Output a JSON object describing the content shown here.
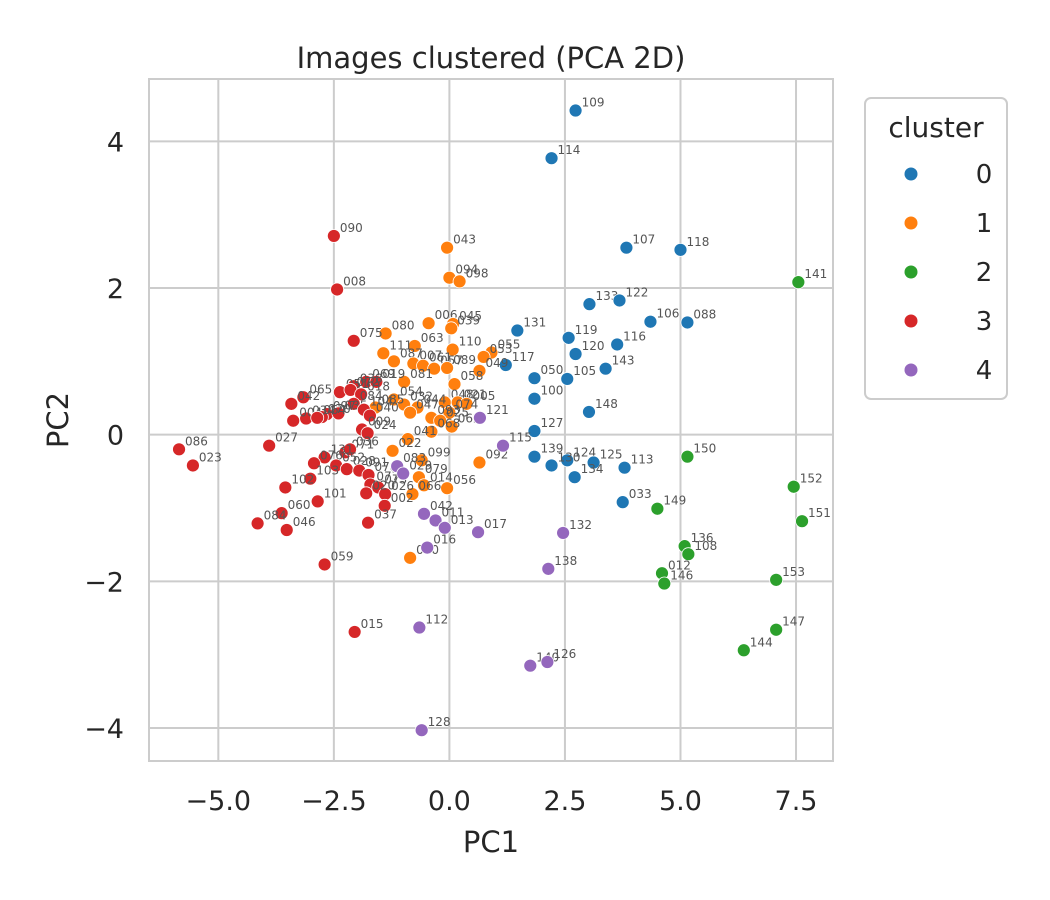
{
  "chart_data": {
    "type": "scatter",
    "title": "Images clustered (PCA 2D)",
    "xlabel": "PC1",
    "ylabel": "PC2",
    "xlim": [
      -6.5,
      8.3
    ],
    "ylim": [
      -4.45,
      4.85
    ],
    "xticks": [
      -5.0,
      -2.5,
      0.0,
      2.5,
      5.0,
      7.5
    ],
    "xtick_labels": [
      "−5.0",
      "−2.5",
      "0.0",
      "2.5",
      "5.0",
      "7.5"
    ],
    "yticks": [
      -4,
      -2,
      0,
      2,
      4
    ],
    "ytick_labels": [
      "−4",
      "−2",
      "0",
      "2",
      "4"
    ],
    "grid": true,
    "legend": {
      "title": "cluster",
      "placement": "outside-upper-right",
      "entries": [
        "0",
        "1",
        "2",
        "3",
        "4"
      ]
    },
    "colors": {
      "0": "#1f77b4",
      "1": "#ff7f0e",
      "2": "#2ca02c",
      "3": "#d62728",
      "4": "#9467bd"
    },
    "series": [
      {
        "name": "0",
        "points": [
          {
            "label": "109",
            "x": 2.73,
            "y": 4.42
          },
          {
            "label": "114",
            "x": 2.21,
            "y": 3.77
          },
          {
            "label": "107",
            "x": 3.83,
            "y": 2.55
          },
          {
            "label": "118",
            "x": 5.0,
            "y": 2.52
          },
          {
            "label": "133",
            "x": 3.03,
            "y": 1.78
          },
          {
            "label": "122",
            "x": 3.68,
            "y": 1.83
          },
          {
            "label": "106",
            "x": 4.35,
            "y": 1.54
          },
          {
            "label": "088",
            "x": 5.15,
            "y": 1.53
          },
          {
            "label": "131",
            "x": 1.47,
            "y": 1.42
          },
          {
            "label": "119",
            "x": 2.58,
            "y": 1.32
          },
          {
            "label": "116",
            "x": 3.63,
            "y": 1.23
          },
          {
            "label": "120",
            "x": 2.73,
            "y": 1.1
          },
          {
            "label": "143",
            "x": 3.38,
            "y": 0.9
          },
          {
            "label": "117",
            "x": 1.22,
            "y": 0.95
          },
          {
            "label": "050",
            "x": 1.84,
            "y": 0.77
          },
          {
            "label": "105",
            "x": 2.55,
            "y": 0.76
          },
          {
            "label": "100",
            "x": 1.84,
            "y": 0.49
          },
          {
            "label": "148",
            "x": 3.02,
            "y": 0.31
          },
          {
            "label": "127",
            "x": 1.84,
            "y": 0.05
          },
          {
            "label": "139",
            "x": 1.84,
            "y": -0.3
          },
          {
            "label": "124",
            "x": 2.55,
            "y": -0.35
          },
          {
            "label": "130",
            "x": 2.21,
            "y": -0.42
          },
          {
            "label": "125",
            "x": 3.12,
            "y": -0.38
          },
          {
            "label": "113",
            "x": 3.79,
            "y": -0.45
          },
          {
            "label": "134",
            "x": 2.71,
            "y": -0.58
          },
          {
            "label": "033",
            "x": 3.75,
            "y": -0.92
          }
        ]
      },
      {
        "name": "1",
        "points": [
          {
            "label": "043",
            "x": -0.05,
            "y": 2.55
          },
          {
            "label": "094",
            "x": 0.0,
            "y": 2.14
          },
          {
            "label": "098",
            "x": 0.22,
            "y": 2.09
          },
          {
            "label": "006",
            "x": -0.45,
            "y": 1.52
          },
          {
            "label": "045",
            "x": 0.08,
            "y": 1.51
          },
          {
            "label": "039",
            "x": 0.04,
            "y": 1.45
          },
          {
            "label": "080",
            "x": -1.38,
            "y": 1.38
          },
          {
            "label": "063",
            "x": -0.75,
            "y": 1.21
          },
          {
            "label": "110",
            "x": 0.07,
            "y": 1.16
          },
          {
            "label": "055",
            "x": 0.91,
            "y": 1.12
          },
          {
            "label": "111",
            "x": -1.43,
            "y": 1.11
          },
          {
            "label": "053",
            "x": 0.74,
            "y": 1.06
          },
          {
            "label": "087",
            "x": -1.2,
            "y": 1.0
          },
          {
            "label": "007",
            "x": -0.78,
            "y": 0.97
          },
          {
            "label": "061",
            "x": -0.57,
            "y": 0.94
          },
          {
            "label": "057",
            "x": -0.33,
            "y": 0.9
          },
          {
            "label": "089",
            "x": -0.05,
            "y": 0.91
          },
          {
            "label": "049",
            "x": 0.65,
            "y": 0.87
          },
          {
            "label": "058",
            "x": 0.11,
            "y": 0.69
          },
          {
            "label": "081",
            "x": -0.98,
            "y": 0.72
          },
          {
            "label": "048",
            "x": -0.1,
            "y": 0.44
          },
          {
            "label": "021",
            "x": 0.18,
            "y": 0.44
          },
          {
            "label": "005",
            "x": 0.37,
            "y": 0.42
          },
          {
            "label": "054",
            "x": -1.2,
            "y": 0.48
          },
          {
            "label": "032",
            "x": -0.98,
            "y": 0.41
          },
          {
            "label": "044",
            "x": -0.69,
            "y": 0.37
          },
          {
            "label": "085",
            "x": -1.6,
            "y": 0.37
          },
          {
            "label": "047",
            "x": -0.85,
            "y": 0.3
          },
          {
            "label": "074",
            "x": 0.0,
            "y": 0.3
          },
          {
            "label": "093",
            "x": -0.39,
            "y": 0.23
          },
          {
            "label": "025",
            "x": -0.2,
            "y": 0.19
          },
          {
            "label": "062",
            "x": 0.05,
            "y": 0.11
          },
          {
            "label": "068",
            "x": -0.39,
            "y": 0.04
          },
          {
            "label": "041",
            "x": -0.9,
            "y": -0.06
          },
          {
            "label": "022",
            "x": -1.23,
            "y": -0.22
          },
          {
            "label": "099",
            "x": -0.6,
            "y": -0.35
          },
          {
            "label": "092",
            "x": 0.65,
            "y": -0.38
          },
          {
            "label": "079",
            "x": -0.66,
            "y": -0.58
          },
          {
            "label": "014",
            "x": -0.55,
            "y": -0.69
          },
          {
            "label": "056",
            "x": -0.05,
            "y": -0.73
          },
          {
            "label": "066",
            "x": -0.8,
            "y": -0.81
          },
          {
            "label": "010",
            "x": -0.85,
            "y": -1.68
          }
        ]
      },
      {
        "name": "2",
        "points": [
          {
            "label": "141",
            "x": 7.55,
            "y": 2.08
          },
          {
            "label": "150",
            "x": 5.15,
            "y": -0.3
          },
          {
            "label": "152",
            "x": 7.45,
            "y": -0.71
          },
          {
            "label": "149",
            "x": 4.5,
            "y": -1.01
          },
          {
            "label": "151",
            "x": 7.63,
            "y": -1.18
          },
          {
            "label": "136",
            "x": 5.09,
            "y": -1.52
          },
          {
            "label": "108",
            "x": 5.17,
            "y": -1.63
          },
          {
            "label": "012",
            "x": 4.6,
            "y": -1.89
          },
          {
            "label": "146",
            "x": 4.65,
            "y": -2.03
          },
          {
            "label": "153",
            "x": 7.07,
            "y": -1.98
          },
          {
            "label": "147",
            "x": 7.07,
            "y": -2.66
          },
          {
            "label": "144",
            "x": 6.37,
            "y": -2.94
          }
        ]
      },
      {
        "name": "3",
        "points": [
          {
            "label": "090",
            "x": -2.5,
            "y": 2.71
          },
          {
            "label": "008",
            "x": -2.43,
            "y": 1.98
          },
          {
            "label": "075",
            "x": -2.07,
            "y": 1.28
          },
          {
            "label": "069",
            "x": -1.8,
            "y": 0.72
          },
          {
            "label": "019",
            "x": -1.58,
            "y": 0.72
          },
          {
            "label": "038",
            "x": -2.07,
            "y": 0.66
          },
          {
            "label": "051",
            "x": -2.37,
            "y": 0.58
          },
          {
            "label": "072",
            "x": -2.14,
            "y": 0.61
          },
          {
            "label": "018",
            "x": -1.91,
            "y": 0.55
          },
          {
            "label": "065",
            "x": -3.16,
            "y": 0.51
          },
          {
            "label": "042",
            "x": -3.42,
            "y": 0.42
          },
          {
            "label": "084",
            "x": -2.07,
            "y": 0.42
          },
          {
            "label": "097",
            "x": -2.65,
            "y": 0.28
          },
          {
            "label": "035",
            "x": -2.4,
            "y": 0.29
          },
          {
            "label": "104",
            "x": -1.85,
            "y": 0.34
          },
          {
            "label": "070",
            "x": -2.76,
            "y": 0.24
          },
          {
            "label": "034",
            "x": -3.1,
            "y": 0.22
          },
          {
            "label": "004",
            "x": -3.38,
            "y": 0.19
          },
          {
            "label": "064",
            "x": -2.86,
            "y": 0.23
          },
          {
            "label": "040",
            "x": -1.72,
            "y": 0.26
          },
          {
            "label": "009",
            "x": -1.89,
            "y": 0.07
          },
          {
            "label": "024",
            "x": -1.77,
            "y": 0.02
          },
          {
            "label": "027",
            "x": -3.9,
            "y": -0.15
          },
          {
            "label": "086",
            "x": -5.85,
            "y": -0.2
          },
          {
            "label": "023",
            "x": -5.55,
            "y": -0.42
          },
          {
            "label": "071",
            "x": -2.25,
            "y": -0.24
          },
          {
            "label": "036",
            "x": -2.15,
            "y": -0.2
          },
          {
            "label": "131b",
            "x": -2.7,
            "y": -0.31
          },
          {
            "label": "076",
            "x": -2.93,
            "y": -0.39
          },
          {
            "label": "052",
            "x": -2.45,
            "y": -0.42
          },
          {
            "label": "028",
            "x": -2.22,
            "y": -0.47
          },
          {
            "label": "091",
            "x": -1.95,
            "y": -0.49
          },
          {
            "label": "078",
            "x": -1.75,
            "y": -0.55
          },
          {
            "label": "103",
            "x": -3.01,
            "y": -0.6
          },
          {
            "label": "077",
            "x": -1.71,
            "y": -0.68
          },
          {
            "label": "073",
            "x": -1.54,
            "y": -0.72
          },
          {
            "label": "102",
            "x": -3.55,
            "y": -0.72
          },
          {
            "label": "026",
            "x": -1.39,
            "y": -0.81
          },
          {
            "label": "020",
            "x": -1.8,
            "y": -0.8
          },
          {
            "label": "101",
            "x": -2.85,
            "y": -0.91
          },
          {
            "label": "002",
            "x": -1.4,
            "y": -0.97
          },
          {
            "label": "060",
            "x": -3.63,
            "y": -1.07
          },
          {
            "label": "084b",
            "x": -4.15,
            "y": -1.21
          },
          {
            "label": "037",
            "x": -1.76,
            "y": -1.2
          },
          {
            "label": "046",
            "x": -3.52,
            "y": -1.3
          },
          {
            "label": "059",
            "x": -2.7,
            "y": -1.77
          },
          {
            "label": "015",
            "x": -2.05,
            "y": -2.69
          }
        ]
      },
      {
        "name": "4",
        "points": [
          {
            "label": "121",
            "x": 0.66,
            "y": 0.23
          },
          {
            "label": "115",
            "x": 1.16,
            "y": -0.15
          },
          {
            "label": "083",
            "x": -1.13,
            "y": -0.43
          },
          {
            "label": "029",
            "x": -1.0,
            "y": -0.53
          },
          {
            "label": "042b",
            "x": -0.55,
            "y": -1.08
          },
          {
            "label": "011",
            "x": -0.3,
            "y": -1.17
          },
          {
            "label": "013",
            "x": -0.1,
            "y": -1.27
          },
          {
            "label": "017",
            "x": 0.62,
            "y": -1.33
          },
          {
            "label": "132",
            "x": 2.46,
            "y": -1.34
          },
          {
            "label": "016",
            "x": -0.48,
            "y": -1.54
          },
          {
            "label": "138",
            "x": 2.14,
            "y": -1.83
          },
          {
            "label": "112",
            "x": -0.65,
            "y": -2.63
          },
          {
            "label": "140",
            "x": 1.75,
            "y": -3.15
          },
          {
            "label": "126",
            "x": 2.12,
            "y": -3.1
          },
          {
            "label": "128",
            "x": -0.6,
            "y": -4.03
          }
        ]
      }
    ]
  }
}
